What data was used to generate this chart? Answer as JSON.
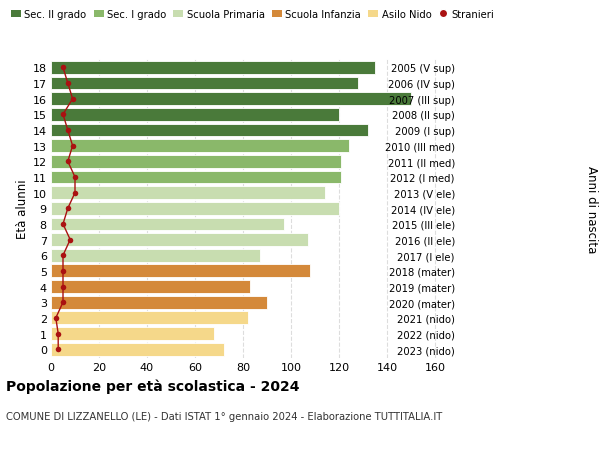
{
  "ages": [
    0,
    1,
    2,
    3,
    4,
    5,
    6,
    7,
    8,
    9,
    10,
    11,
    12,
    13,
    14,
    15,
    16,
    17,
    18
  ],
  "bar_values": [
    72,
    68,
    82,
    90,
    83,
    108,
    87,
    107,
    97,
    120,
    114,
    121,
    121,
    124,
    132,
    120,
    150,
    128,
    135
  ],
  "stranieri": [
    3,
    3,
    2,
    5,
    5,
    5,
    5,
    8,
    5,
    7,
    10,
    10,
    7,
    9,
    7,
    5,
    9,
    7,
    5
  ],
  "bar_colors": [
    "#f5d88a",
    "#f5d88a",
    "#f5d88a",
    "#d4893a",
    "#d4893a",
    "#d4893a",
    "#c8ddb0",
    "#c8ddb0",
    "#c8ddb0",
    "#c8ddb0",
    "#c8ddb0",
    "#8ab86a",
    "#8ab86a",
    "#8ab86a",
    "#4a7a3a",
    "#4a7a3a",
    "#4a7a3a",
    "#4a7a3a",
    "#4a7a3a"
  ],
  "right_labels": [
    "2023 (nido)",
    "2022 (nido)",
    "2021 (nido)",
    "2020 (mater)",
    "2019 (mater)",
    "2018 (mater)",
    "2017 (I ele)",
    "2016 (II ele)",
    "2015 (III ele)",
    "2014 (IV ele)",
    "2013 (V ele)",
    "2012 (I med)",
    "2011 (II med)",
    "2010 (III med)",
    "2009 (I sup)",
    "2008 (II sup)",
    "2007 (III sup)",
    "2006 (IV sup)",
    "2005 (V sup)"
  ],
  "legend_labels": [
    "Sec. II grado",
    "Sec. I grado",
    "Scuola Primaria",
    "Scuola Infanzia",
    "Asilo Nido",
    "Stranieri"
  ],
  "legend_colors": [
    "#4a7a3a",
    "#8ab86a",
    "#c8ddb0",
    "#d4893a",
    "#f5d88a",
    "#cc2222"
  ],
  "title": "Popolazione per età scolastica - 2024",
  "subtitle": "COMUNE DI LIZZANELLO (LE) - Dati ISTAT 1° gennaio 2024 - Elaborazione TUTTITALIA.IT",
  "ylabel": "Età alunni",
  "right_ylabel": "Anni di nascita",
  "xlim": [
    0,
    170
  ],
  "xticks": [
    0,
    20,
    40,
    60,
    80,
    100,
    120,
    140,
    160
  ],
  "background_color": "#ffffff",
  "grid_color": "#dddddd",
  "stranieri_color": "#aa1111",
  "bar_height": 0.82
}
